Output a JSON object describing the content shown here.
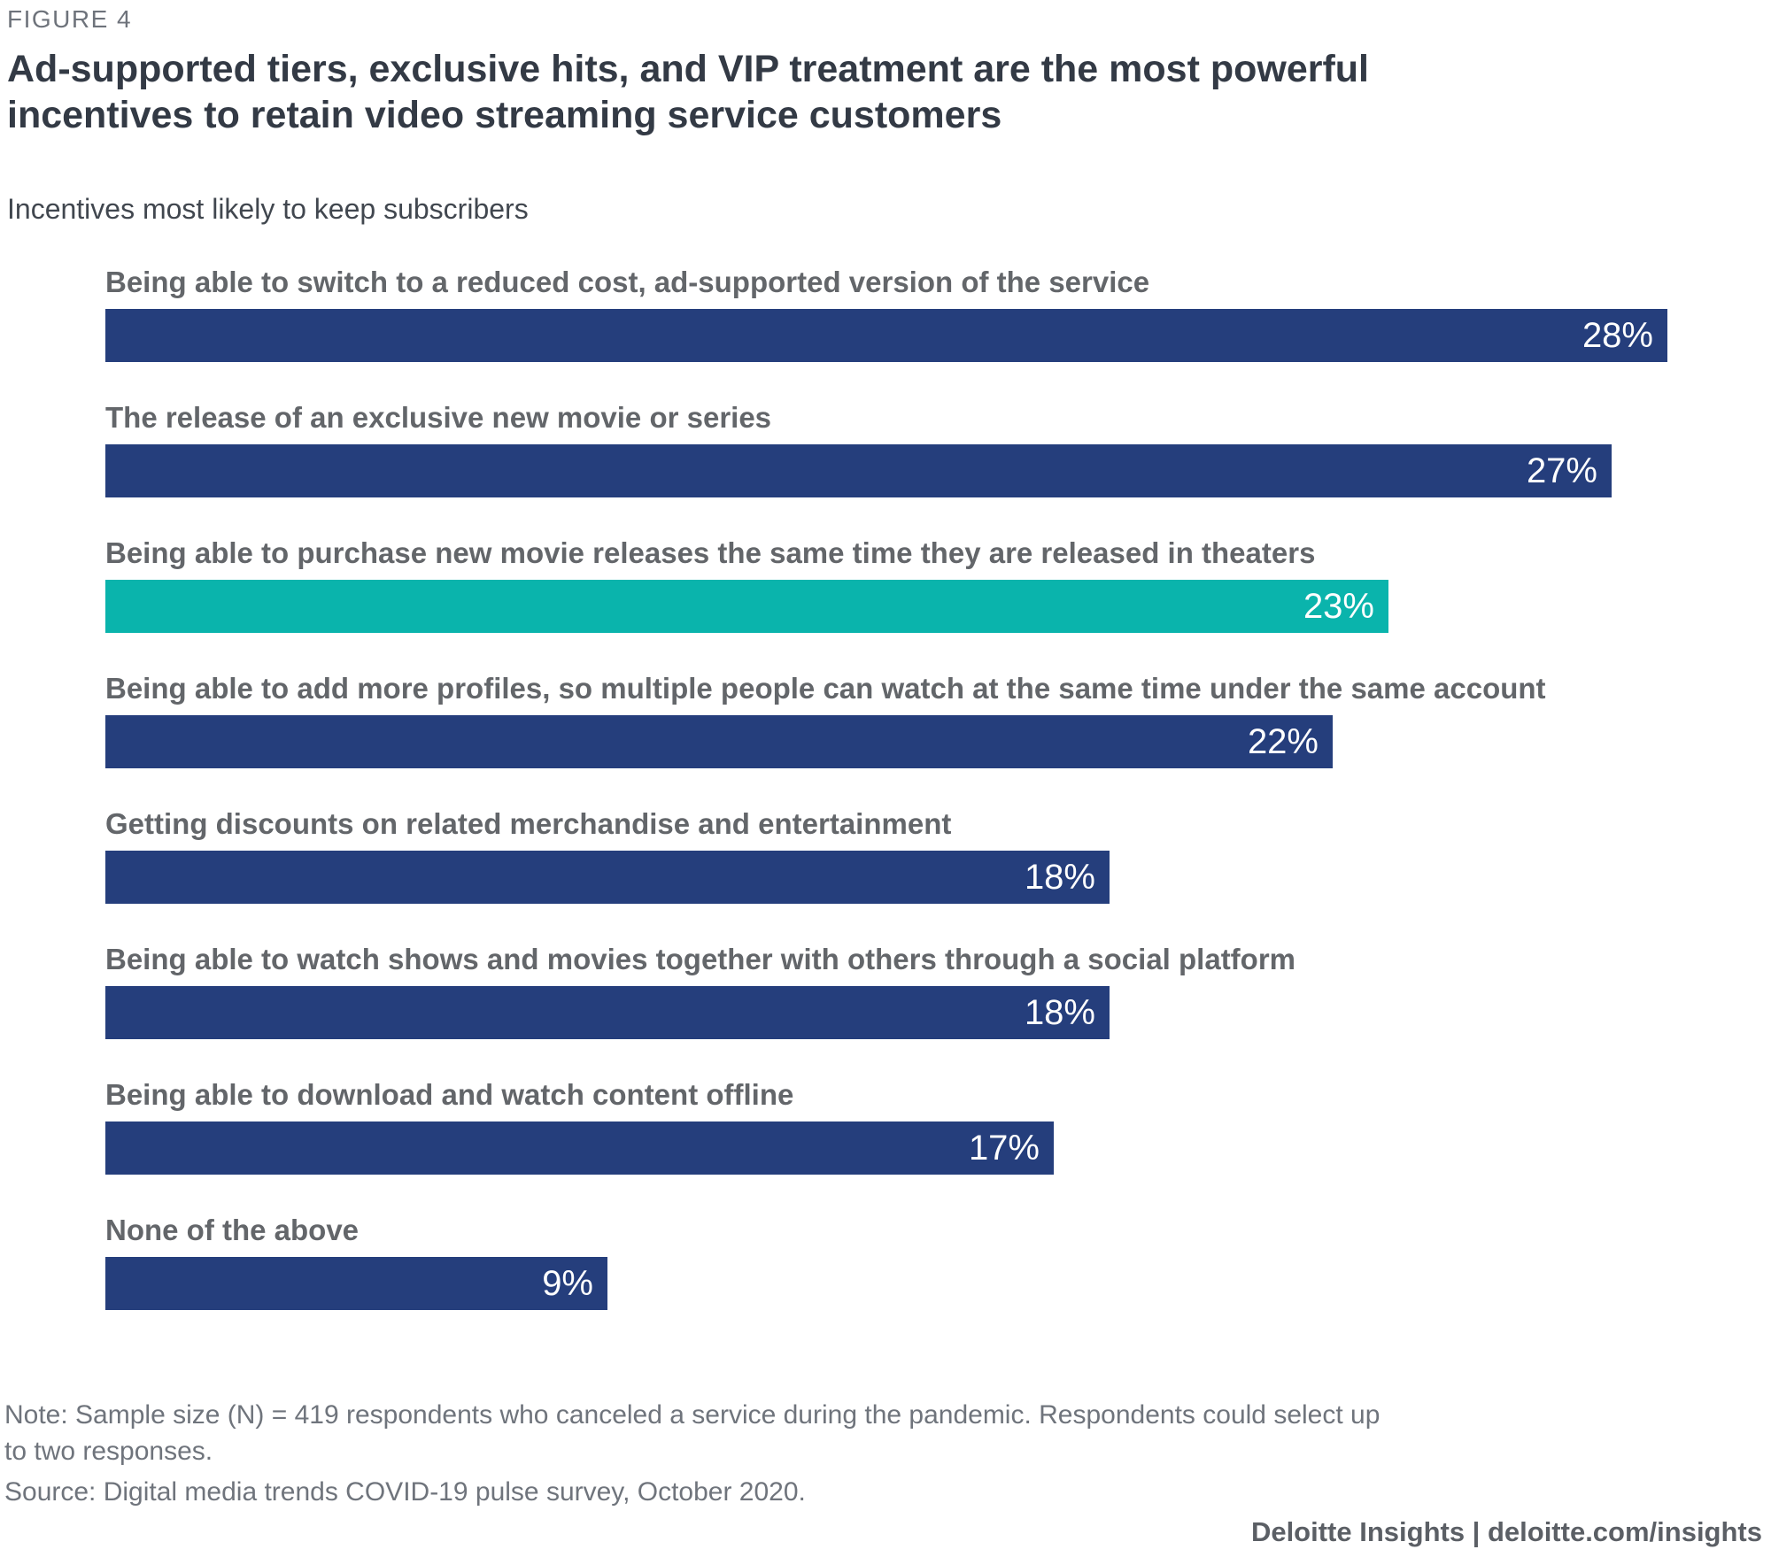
{
  "header": {
    "figure_label": "FIGURE 4",
    "title": "Ad-supported tiers, exclusive hits, and VIP treatment are the most powerful incentives to retain video streaming service customers",
    "subtitle": "Incentives most likely to keep subscribers"
  },
  "colors": {
    "bar_navy": "#253E7C",
    "bar_teal": "#0AB4AC",
    "title_text": "#333A45",
    "figure_label_text": "#6E737B",
    "bar_label_text": "#63666A",
    "bar_value_text": "#FFFFFF",
    "note_text": "#6F747C"
  },
  "chart_data": {
    "type": "bar",
    "orientation": "horizontal",
    "title": "Ad-supported tiers, exclusive hits, and VIP treatment are the most powerful incentives to retain video streaming service customers",
    "subtitle": "Incentives most likely to keep subscribers",
    "categories": [
      "Being able to switch to a reduced cost, ad-supported version of the service",
      "The release of an exclusive new movie or series",
      "Being able to purchase new movie releases the same time they are released in theaters",
      "Being able to add more profiles, so multiple people can watch at the same time under the same account",
      "Getting discounts on related merchandise and entertainment",
      "Being able to watch shows and movies together with others through a social platform",
      "Being able to download and watch content offline",
      "None of the above"
    ],
    "values": [
      28,
      27,
      23,
      22,
      18,
      18,
      17,
      9
    ],
    "value_labels": [
      "28%",
      "27%",
      "23%",
      "22%",
      "18%",
      "18%",
      "17%",
      "9%"
    ],
    "unit": "%",
    "xlim": [
      0,
      28.5
    ],
    "grid": false,
    "legend": false,
    "axis_labels_shown": false,
    "value_label_position": "inside-right",
    "bar_color_default": "#253E7C",
    "bar_color_highlight": "#0AB4AC",
    "highlight_index": 2
  },
  "footer": {
    "note": "Note: Sample size (N) = 419 respondents who canceled a service during the pandemic. Respondents could select up to two responses.",
    "source": "Source: Digital media trends COVID-19 pulse survey, October 2020.",
    "attribution": "Deloitte Insights | deloitte.com/insights"
  }
}
